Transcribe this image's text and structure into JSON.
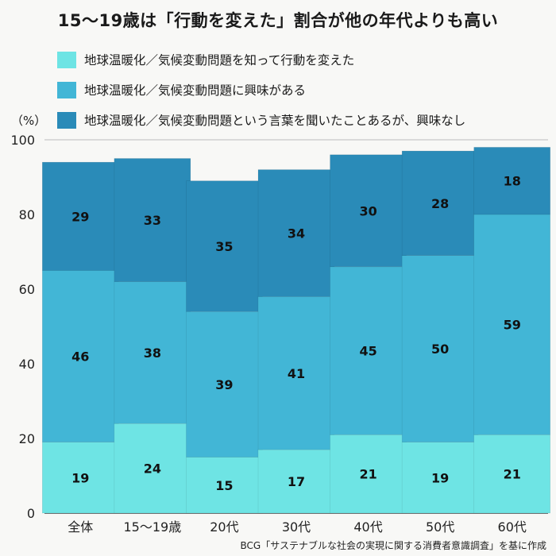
{
  "title": "15〜19歳は「行動を変えた」割合が他の年代よりも高い",
  "unit_label": "（%）",
  "source": "BCG「サステナブルな社会の実現に関する消費者意識調査」を基に作成",
  "colors": {
    "series1": "#6ee4e4",
    "series2": "#42b6d6",
    "series3": "#2a8bb8"
  },
  "chart_data": {
    "type": "bar",
    "stacked": true,
    "categories": [
      "全体",
      "15〜19歳",
      "20代",
      "30代",
      "40代",
      "50代",
      "60代"
    ],
    "series": [
      {
        "name": "地球温暖化／気候変動問題を知って行動を変えた",
        "values": [
          19,
          24,
          15,
          17,
          21,
          19,
          21
        ]
      },
      {
        "name": "地球温暖化／気候変動問題に興味がある",
        "values": [
          46,
          38,
          39,
          41,
          45,
          50,
          59
        ]
      },
      {
        "name": "地球温暖化／気候変動問題という言葉を聞いたことあるが、興味なし",
        "values": [
          29,
          33,
          35,
          34,
          30,
          28,
          18
        ]
      }
    ],
    "ylim": [
      0,
      100
    ],
    "yticks": [
      0,
      20,
      40,
      60,
      80,
      100
    ],
    "grid": true,
    "legend_position": "top",
    "xlabel": "",
    "ylabel": "（%）"
  }
}
